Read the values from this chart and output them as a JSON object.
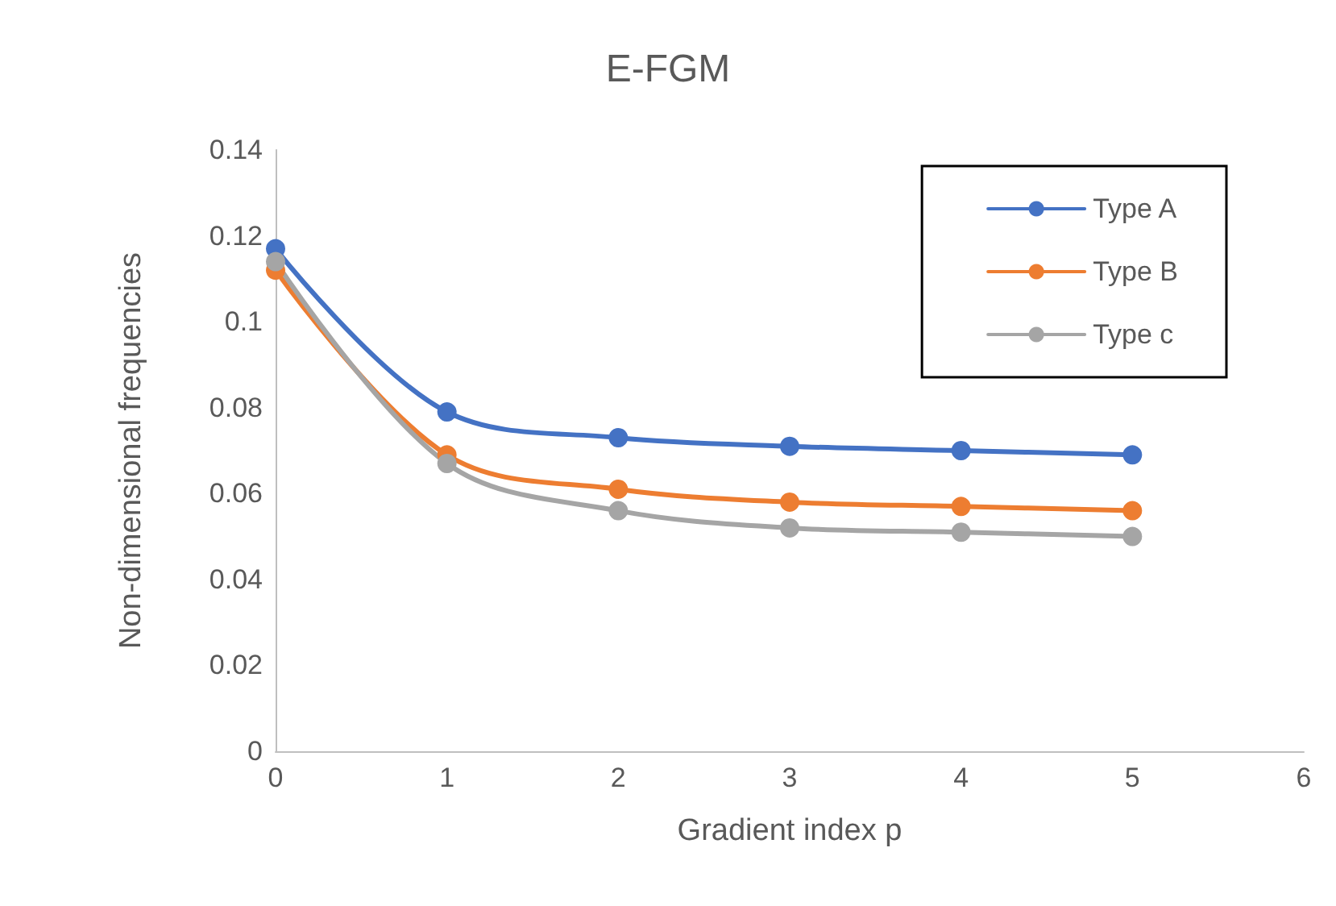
{
  "chart_data": {
    "type": "line",
    "title": "E-FGM",
    "xlabel": "Gradient index p",
    "ylabel": "Non-dimensional frequencies",
    "xlim": [
      0,
      6
    ],
    "xticks": [
      0,
      1,
      2,
      3,
      4,
      5,
      6
    ],
    "ylim": [
      0,
      0.14
    ],
    "yticks": [
      0,
      0.02,
      0.04,
      0.06,
      0.08,
      0.1,
      0.12,
      0.14
    ],
    "x": [
      0,
      1,
      2,
      3,
      4,
      5
    ],
    "grid": false,
    "legend": "top right",
    "marker": "circle",
    "line_style": "solid",
    "series": [
      {
        "name": "Type A",
        "color": "#4472c4",
        "values": [
          0.117,
          0.079,
          0.073,
          0.071,
          0.07,
          0.069
        ]
      },
      {
        "name": "Type B",
        "color": "#ed7d31",
        "values": [
          0.112,
          0.069,
          0.061,
          0.058,
          0.057,
          0.056
        ]
      },
      {
        "name": "Type c",
        "color": "#a5a5a5",
        "values": [
          0.114,
          0.067,
          0.056,
          0.052,
          0.051,
          0.05
        ]
      }
    ]
  }
}
